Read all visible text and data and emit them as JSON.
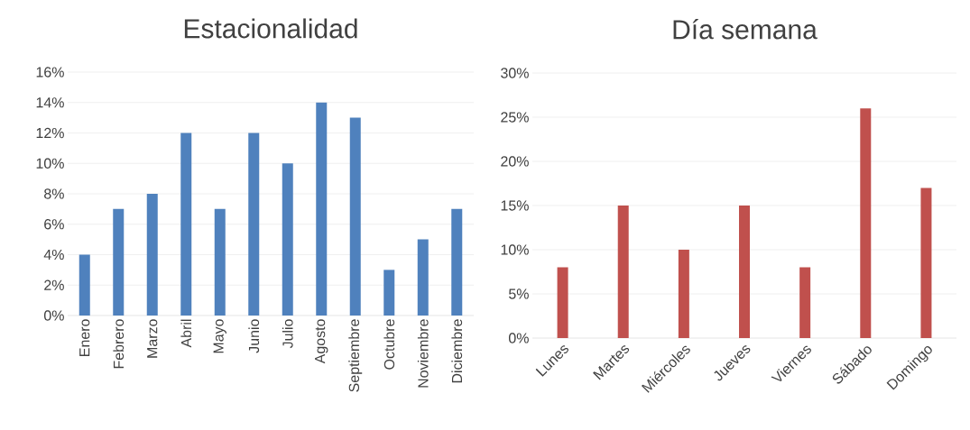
{
  "chart_data": [
    {
      "type": "bar",
      "title": "Estacionalidad",
      "categories": [
        "Enero",
        "Febrero",
        "Marzo",
        "Abril",
        "Mayo",
        "Junio",
        "Julio",
        "Agosto",
        "Septiembre",
        "Octubre",
        "Noviembre",
        "Diciembre"
      ],
      "values": [
        4,
        7,
        8,
        12,
        7,
        12,
        10,
        14,
        13,
        3,
        5,
        7
      ],
      "color": "#4f81bd",
      "ylim": [
        0,
        16
      ],
      "yticks": [
        {
          "value": 0,
          "label": "0%"
        },
        {
          "value": 2,
          "label": "2%"
        },
        {
          "value": 4,
          "label": "4%"
        },
        {
          "value": 6,
          "label": "6%"
        },
        {
          "value": 8,
          "label": "8%"
        },
        {
          "value": 10,
          "label": "10%"
        },
        {
          "value": 12,
          "label": "12%"
        },
        {
          "value": 14,
          "label": "14%"
        },
        {
          "value": 16,
          "label": "16%"
        }
      ],
      "grid": "y"
    },
    {
      "type": "bar",
      "title": "Día semana",
      "categories": [
        "Lunes",
        "Martes",
        "Miércoles",
        "Jueves",
        "Viernes",
        "Sábado",
        "Domingo"
      ],
      "values": [
        8,
        15,
        10,
        15,
        8,
        26,
        17
      ],
      "color": "#c0504d",
      "ylim": [
        0,
        30
      ],
      "yticks": [
        {
          "value": 0,
          "label": "0%"
        },
        {
          "value": 5,
          "label": "5%"
        },
        {
          "value": 10,
          "label": "10%"
        },
        {
          "value": 15,
          "label": "15%"
        },
        {
          "value": 20,
          "label": "20%"
        },
        {
          "value": 25,
          "label": "25%"
        },
        {
          "value": 30,
          "label": "30%"
        }
      ],
      "grid": "y"
    }
  ]
}
